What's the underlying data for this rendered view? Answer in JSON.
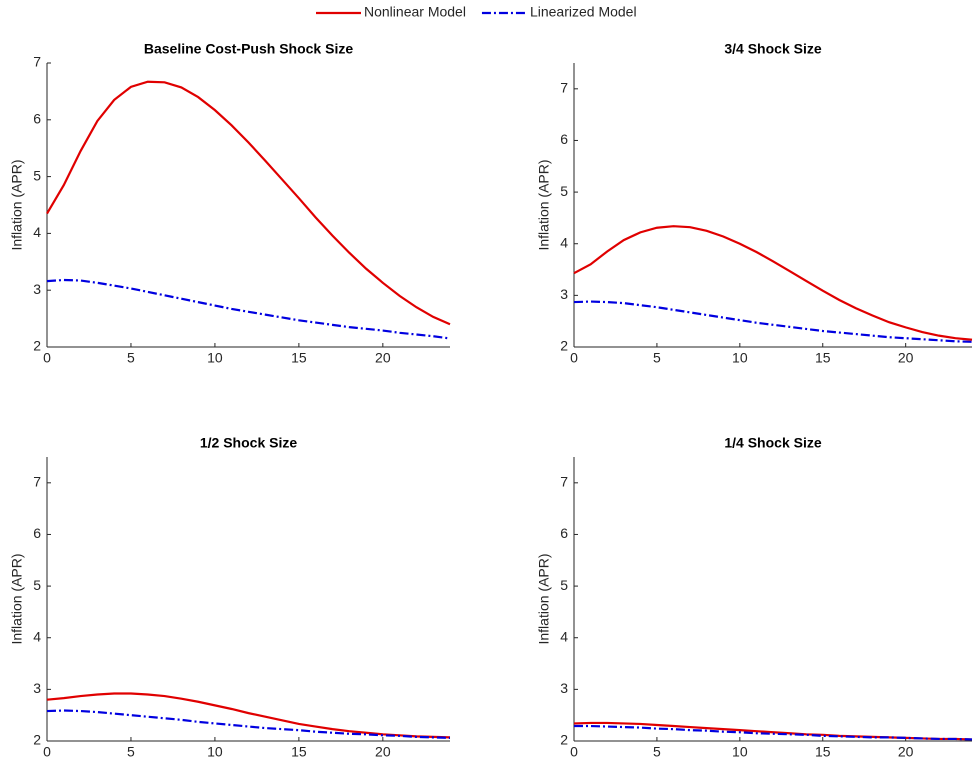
{
  "chart_data": [
    {
      "type": "line",
      "title": "Baseline Cost-Push Shock Size",
      "ylabel": "Inflation (APR)",
      "x": [
        0,
        1,
        2,
        3,
        4,
        5,
        6,
        7,
        8,
        9,
        10,
        11,
        12,
        13,
        14,
        15,
        16,
        17,
        18,
        19,
        20,
        21,
        22,
        23,
        24
      ],
      "xlim": [
        0,
        24
      ],
      "xticks": [
        0,
        5,
        10,
        15,
        20
      ],
      "ylim": [
        2,
        7
      ],
      "yticks": [
        2,
        3,
        4,
        5,
        6,
        7
      ],
      "series": [
        {
          "name": "Nonlinear Model",
          "color": "#e00000",
          "linestyle": "solid",
          "values": [
            4.35,
            4.85,
            5.45,
            5.98,
            6.35,
            6.58,
            6.67,
            6.66,
            6.57,
            6.4,
            6.17,
            5.9,
            5.6,
            5.28,
            4.95,
            4.62,
            4.28,
            3.96,
            3.66,
            3.38,
            3.13,
            2.9,
            2.7,
            2.53,
            2.4
          ]
        },
        {
          "name": "Linearized Model",
          "color": "#0000e0",
          "linestyle": "dashdot",
          "values": [
            3.16,
            3.18,
            3.17,
            3.13,
            3.08,
            3.03,
            2.97,
            2.91,
            2.85,
            2.79,
            2.73,
            2.67,
            2.62,
            2.57,
            2.52,
            2.47,
            2.43,
            2.39,
            2.35,
            2.32,
            2.29,
            2.25,
            2.22,
            2.19,
            2.15
          ]
        }
      ]
    },
    {
      "type": "line",
      "title": "3/4 Shock Size",
      "ylabel": "Inflation (APR)",
      "x": [
        0,
        1,
        2,
        3,
        4,
        5,
        6,
        7,
        8,
        9,
        10,
        11,
        12,
        13,
        14,
        15,
        16,
        17,
        18,
        19,
        20,
        21,
        22,
        23,
        24
      ],
      "xlim": [
        0,
        24
      ],
      "xticks": [
        0,
        5,
        10,
        15,
        20
      ],
      "ylim": [
        2,
        7.5
      ],
      "yticks": [
        2,
        3,
        4,
        5,
        6,
        7
      ],
      "series": [
        {
          "color": "#e00000",
          "linestyle": "solid",
          "values": [
            3.43,
            3.6,
            3.85,
            4.07,
            4.22,
            4.31,
            4.34,
            4.32,
            4.25,
            4.14,
            4.0,
            3.84,
            3.66,
            3.47,
            3.28,
            3.09,
            2.91,
            2.75,
            2.61,
            2.48,
            2.38,
            2.29,
            2.22,
            2.17,
            2.14
          ]
        },
        {
          "color": "#0000e0",
          "linestyle": "dashdot",
          "values": [
            2.87,
            2.88,
            2.87,
            2.85,
            2.81,
            2.77,
            2.72,
            2.67,
            2.62,
            2.57,
            2.52,
            2.47,
            2.43,
            2.39,
            2.35,
            2.31,
            2.28,
            2.25,
            2.22,
            2.19,
            2.17,
            2.15,
            2.13,
            2.11,
            2.1
          ]
        }
      ]
    },
    {
      "type": "line",
      "title": "1/2 Shock Size",
      "ylabel": "Inflation (APR)",
      "x": [
        0,
        1,
        2,
        3,
        4,
        5,
        6,
        7,
        8,
        9,
        10,
        11,
        12,
        13,
        14,
        15,
        16,
        17,
        18,
        19,
        20,
        21,
        22,
        23,
        24
      ],
      "xlim": [
        0,
        24
      ],
      "xticks": [
        0,
        5,
        10,
        15,
        20
      ],
      "ylim": [
        2,
        7.5
      ],
      "yticks": [
        2,
        3,
        4,
        5,
        6,
        7
      ],
      "series": [
        {
          "color": "#e00000",
          "linestyle": "solid",
          "values": [
            2.8,
            2.83,
            2.87,
            2.9,
            2.92,
            2.92,
            2.9,
            2.87,
            2.82,
            2.76,
            2.69,
            2.62,
            2.54,
            2.47,
            2.4,
            2.33,
            2.28,
            2.23,
            2.19,
            2.16,
            2.13,
            2.11,
            2.09,
            2.08,
            2.07
          ]
        },
        {
          "color": "#0000e0",
          "linestyle": "dashdot",
          "values": [
            2.58,
            2.59,
            2.58,
            2.56,
            2.53,
            2.5,
            2.47,
            2.44,
            2.41,
            2.37,
            2.34,
            2.31,
            2.28,
            2.25,
            2.23,
            2.21,
            2.18,
            2.16,
            2.14,
            2.13,
            2.11,
            2.1,
            2.08,
            2.07,
            2.06
          ]
        }
      ]
    },
    {
      "type": "line",
      "title": "1/4 Shock Size",
      "ylabel": "Inflation (APR)",
      "x": [
        0,
        1,
        2,
        3,
        4,
        5,
        6,
        7,
        8,
        9,
        10,
        11,
        12,
        13,
        14,
        15,
        16,
        17,
        18,
        19,
        20,
        21,
        22,
        23,
        24
      ],
      "xlim": [
        0,
        24
      ],
      "xticks": [
        0,
        5,
        10,
        15,
        20
      ],
      "ylim": [
        2,
        7.5
      ],
      "yticks": [
        2,
        3,
        4,
        5,
        6,
        7
      ],
      "series": [
        {
          "color": "#e00000",
          "linestyle": "solid",
          "values": [
            2.34,
            2.35,
            2.35,
            2.34,
            2.33,
            2.31,
            2.29,
            2.27,
            2.25,
            2.23,
            2.21,
            2.19,
            2.17,
            2.15,
            2.13,
            2.12,
            2.1,
            2.09,
            2.08,
            2.07,
            2.06,
            2.05,
            2.04,
            2.04,
            2.03
          ]
        },
        {
          "color": "#0000e0",
          "linestyle": "dashdot",
          "values": [
            2.29,
            2.29,
            2.28,
            2.27,
            2.26,
            2.24,
            2.23,
            2.21,
            2.2,
            2.18,
            2.17,
            2.15,
            2.14,
            2.13,
            2.12,
            2.1,
            2.09,
            2.08,
            2.07,
            2.07,
            2.06,
            2.05,
            2.04,
            2.04,
            2.03
          ]
        }
      ]
    }
  ]
}
